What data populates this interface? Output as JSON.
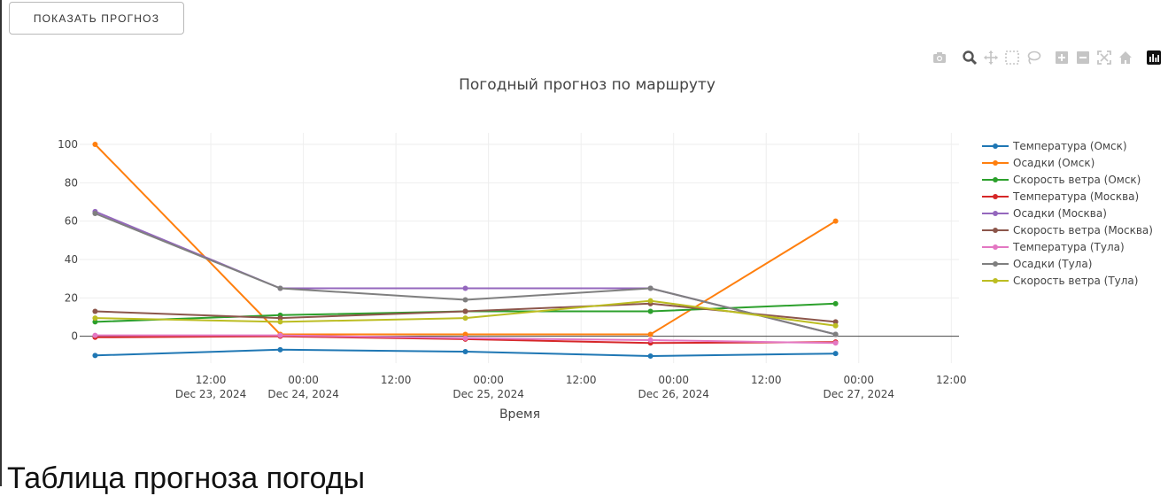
{
  "button": {
    "label": "ПОКАЗАТЬ ПРОГНОЗ"
  },
  "modebar": [
    "camera-icon",
    "zoom-icon",
    "pan-icon",
    "box-select-icon",
    "lasso-select-icon",
    "zoom-in-icon",
    "zoom-out-icon",
    "autoscale-icon",
    "reset-axes-icon",
    "plotly-logo-icon"
  ],
  "table_heading": "Таблица прогноза погоды",
  "chart_data": {
    "type": "line",
    "title": "Погодный прогноз по маршруту",
    "xlabel": "Время",
    "ylabel": "",
    "x": [
      "2024-12-22 21:00",
      "2024-12-23 21:00",
      "2024-12-24 21:00",
      "2024-12-25 21:00",
      "2024-12-26 21:00"
    ],
    "xlim": [
      "2024-12-22 19:00",
      "2024-12-27 13:00"
    ],
    "ylim": [
      -14,
      106
    ],
    "x_ticks": [
      {
        "at": "2024-12-23 12:00",
        "label": "12:00",
        "sub": "Dec 23, 2024"
      },
      {
        "at": "2024-12-24 00:00",
        "label": "00:00",
        "sub": "Dec 24, 2024"
      },
      {
        "at": "2024-12-24 12:00",
        "label": "12:00",
        "sub": ""
      },
      {
        "at": "2024-12-25 00:00",
        "label": "00:00",
        "sub": "Dec 25, 2024"
      },
      {
        "at": "2024-12-25 12:00",
        "label": "12:00",
        "sub": ""
      },
      {
        "at": "2024-12-26 00:00",
        "label": "00:00",
        "sub": "Dec 26, 2024"
      },
      {
        "at": "2024-12-26 12:00",
        "label": "12:00",
        "sub": ""
      },
      {
        "at": "2024-12-27 00:00",
        "label": "00:00",
        "sub": "Dec 27, 2024"
      },
      {
        "at": "2024-12-27 12:00",
        "label": "12:00",
        "sub": ""
      }
    ],
    "y_ticks": [
      0,
      20,
      40,
      60,
      80,
      100
    ],
    "grid": true,
    "legend_position": "right",
    "series": [
      {
        "name": "Температура (Омск)",
        "color": "#1f77b4",
        "values": [
          -10,
          -7,
          -8,
          -10.3,
          -9
        ]
      },
      {
        "name": "Осадки (Омск)",
        "color": "#ff7f0e",
        "values": [
          100,
          1,
          1,
          1,
          60
        ]
      },
      {
        "name": "Скорость ветра (Омск)",
        "color": "#2ca02c",
        "values": [
          7.5,
          11,
          13,
          13,
          17
        ]
      },
      {
        "name": "Температура (Москва)",
        "color": "#d62728",
        "values": [
          -0.5,
          0,
          -1.5,
          -3.5,
          -3
        ]
      },
      {
        "name": "Осадки (Москва)",
        "color": "#9467bd",
        "values": [
          65,
          25,
          25,
          25,
          1
        ]
      },
      {
        "name": "Скорость ветра (Москва)",
        "color": "#8c564b",
        "values": [
          13,
          9.5,
          13,
          17,
          7.5
        ]
      },
      {
        "name": "Температура (Тула)",
        "color": "#e377c2",
        "values": [
          0.5,
          0.5,
          -1,
          -2,
          -3.5
        ]
      },
      {
        "name": "Осадки (Тула)",
        "color": "#7f7f7f",
        "values": [
          64,
          25,
          19,
          25,
          1
        ]
      },
      {
        "name": "Скорость ветра (Тула)",
        "color": "#bcbd22",
        "values": [
          9.5,
          7.5,
          9.5,
          18.5,
          5.5
        ]
      }
    ]
  }
}
